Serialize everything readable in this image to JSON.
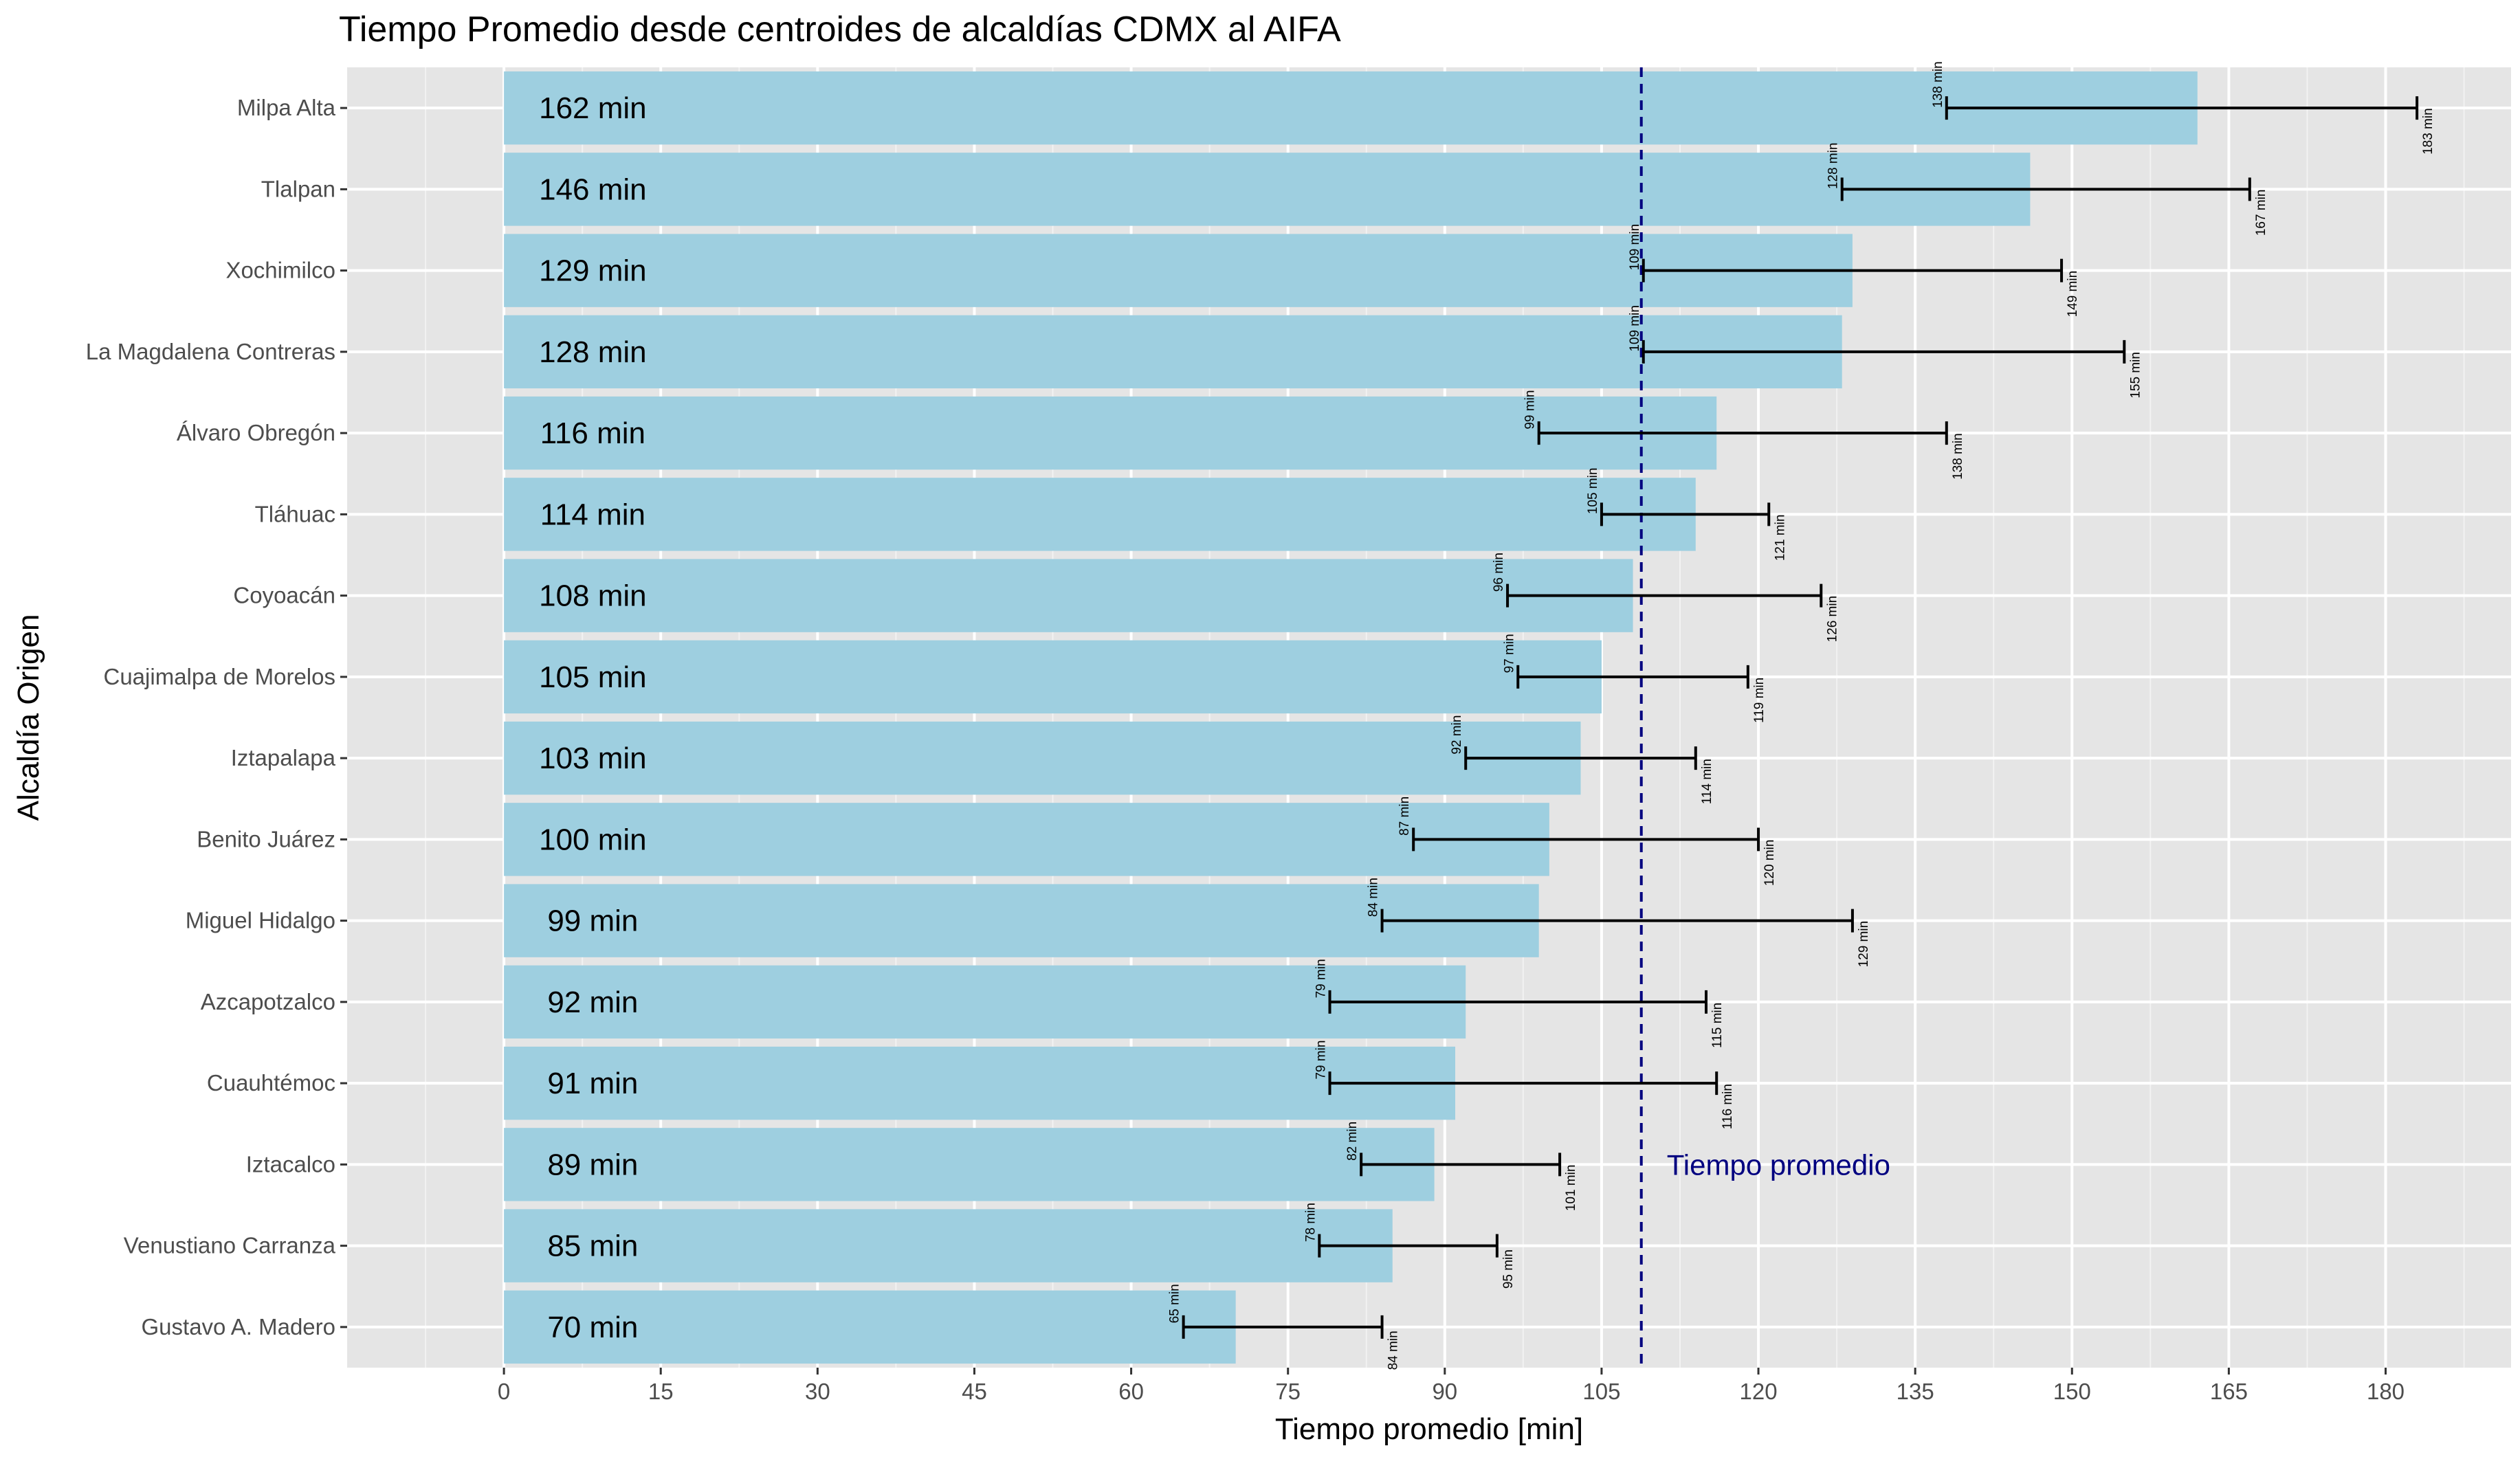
{
  "chart_data": {
    "type": "bar",
    "orientation": "horizontal",
    "title": "Tiempo Promedio desde centroides de alcaldías CDMX al AIFA",
    "xlabel": "Tiempo promedio [min]",
    "ylabel": "Alcaldía Origen",
    "xlim": [
      -15,
      192
    ],
    "xticks": [
      "0",
      "15",
      "30",
      "45",
      "60",
      "75",
      "90",
      "105",
      "120",
      "135",
      "150",
      "165",
      "180"
    ],
    "grid": true,
    "bar_color": "#9ecfe0",
    "panel_background": "#e5e5e5",
    "reference_line": {
      "value": 108.8,
      "label": "Tiempo promedio",
      "color": "#000080",
      "style": "dashed"
    },
    "categories": [
      "Milpa Alta",
      "Tlalpan",
      "Xochimilco",
      "La Magdalena Contreras",
      "Álvaro Obregón",
      "Tláhuac",
      "Coyoacán",
      "Cuajimalpa de Morelos",
      "Iztapalapa",
      "Benito Juárez",
      "Miguel Hidalgo",
      "Azcapotzalco",
      "Cuauhtémoc",
      "Iztacalco",
      "Venustiano Carranza",
      "Gustavo A. Madero"
    ],
    "values": [
      162,
      146,
      129,
      128,
      116,
      114,
      108,
      105,
      103,
      100,
      99,
      92,
      91,
      89,
      85,
      70
    ],
    "value_labels": [
      "162 min",
      "146 min",
      "129 min",
      "128 min",
      "116 min",
      "114 min",
      "108 min",
      "105 min",
      "103 min",
      "100 min",
      "99 min",
      "92 min",
      "91 min",
      "89 min",
      "85 min",
      "70 min"
    ],
    "min": [
      138,
      128,
      109,
      109,
      99,
      105,
      96,
      97,
      92,
      87,
      84,
      79,
      79,
      82,
      78,
      65
    ],
    "max": [
      183,
      167,
      149,
      155,
      138,
      121,
      126,
      119,
      114,
      120,
      129,
      115,
      116,
      101,
      95,
      84
    ],
    "min_labels": [
      "138 min",
      "128 min",
      "109 min",
      "109 min",
      "99 min",
      "105 min",
      "96 min",
      "97 min",
      "92 min",
      "87 min",
      "84 min",
      "79 min",
      "79 min",
      "82 min",
      "78 min",
      "65 min"
    ],
    "max_labels": [
      "183 min",
      "167 min",
      "149 min",
      "155 min",
      "138 min",
      "121 min",
      "126 min",
      "119 min",
      "114 min",
      "120 min",
      "129 min",
      "115 min",
      "116 min",
      "101 min",
      "95 min",
      "84 min"
    ]
  }
}
